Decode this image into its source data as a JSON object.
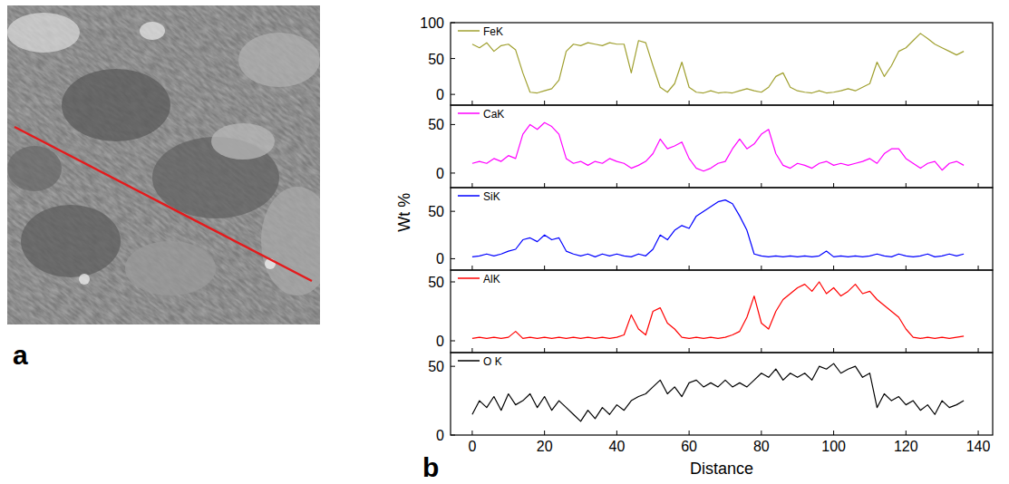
{
  "figure": {
    "panel_labels": [
      "a",
      "b"
    ],
    "x_label": "Distance",
    "y_label": "Wt %"
  },
  "chart_data": [
    {
      "type": "line",
      "legend": "top-left",
      "tick_labels": "y",
      "xlim": [
        -6,
        144
      ],
      "xticks": [
        0,
        20,
        40,
        60,
        80,
        100,
        120,
        140
      ],
      "ylim": [
        -15,
        100
      ],
      "yticks": [
        0,
        50,
        100
      ],
      "x": [
        0,
        2,
        4,
        6,
        8,
        10,
        12,
        14,
        16,
        18,
        20,
        22,
        24,
        26,
        28,
        30,
        32,
        34,
        36,
        38,
        40,
        42,
        44,
        46,
        48,
        50,
        52,
        54,
        56,
        58,
        60,
        62,
        64,
        66,
        68,
        70,
        72,
        74,
        76,
        78,
        80,
        82,
        84,
        86,
        88,
        90,
        92,
        94,
        96,
        98,
        100,
        102,
        104,
        106,
        108,
        110,
        112,
        114,
        116,
        118,
        120,
        122,
        124,
        126,
        128,
        130,
        132,
        134,
        136
      ],
      "series": [
        {
          "name": "FeK",
          "color": "#a0a030",
          "values": [
            70,
            65,
            72,
            60,
            68,
            70,
            62,
            30,
            3,
            2,
            5,
            8,
            20,
            60,
            70,
            68,
            72,
            70,
            68,
            72,
            70,
            70,
            30,
            75,
            72,
            40,
            10,
            3,
            15,
            45,
            10,
            3,
            2,
            5,
            2,
            3,
            2,
            5,
            8,
            5,
            3,
            10,
            25,
            30,
            10,
            5,
            3,
            2,
            5,
            2,
            3,
            5,
            8,
            5,
            10,
            15,
            45,
            25,
            40,
            60,
            65,
            75,
            85,
            78,
            70,
            65,
            60,
            55,
            60
          ]
        }
      ]
    },
    {
      "type": "line",
      "legend": "top-left",
      "tick_labels": "y",
      "xlim": [
        -6,
        144
      ],
      "xticks": [
        0,
        20,
        40,
        60,
        80,
        100,
        120,
        140
      ],
      "ylim": [
        -15,
        70
      ],
      "yticks": [
        0,
        50
      ],
      "x": [
        0,
        2,
        4,
        6,
        8,
        10,
        12,
        14,
        16,
        18,
        20,
        22,
        24,
        26,
        28,
        30,
        32,
        34,
        36,
        38,
        40,
        42,
        44,
        46,
        48,
        50,
        52,
        54,
        56,
        58,
        60,
        62,
        64,
        66,
        68,
        70,
        72,
        74,
        76,
        78,
        80,
        82,
        84,
        86,
        88,
        90,
        92,
        94,
        96,
        98,
        100,
        102,
        104,
        106,
        108,
        110,
        112,
        114,
        116,
        118,
        120,
        122,
        124,
        126,
        128,
        130,
        132,
        134,
        136
      ],
      "series": [
        {
          "name": "CaK",
          "color": "#ff00ff",
          "values": [
            10,
            12,
            10,
            15,
            12,
            18,
            15,
            40,
            50,
            45,
            52,
            48,
            40,
            15,
            10,
            12,
            8,
            12,
            10,
            15,
            12,
            10,
            5,
            8,
            12,
            20,
            35,
            25,
            28,
            32,
            15,
            5,
            2,
            5,
            10,
            12,
            25,
            35,
            25,
            30,
            40,
            45,
            20,
            8,
            5,
            10,
            8,
            5,
            10,
            12,
            8,
            10,
            8,
            10,
            12,
            15,
            10,
            20,
            25,
            25,
            15,
            10,
            5,
            10,
            12,
            3,
            10,
            12,
            8
          ]
        }
      ]
    },
    {
      "type": "line",
      "legend": "top-left",
      "tick_labels": "y",
      "xlim": [
        -6,
        144
      ],
      "xticks": [
        0,
        20,
        40,
        60,
        80,
        100,
        120,
        140
      ],
      "ylim": [
        -12,
        75
      ],
      "yticks": [
        0,
        50
      ],
      "x": [
        0,
        2,
        4,
        6,
        8,
        10,
        12,
        14,
        16,
        18,
        20,
        22,
        24,
        26,
        28,
        30,
        32,
        34,
        36,
        38,
        40,
        42,
        44,
        46,
        48,
        50,
        52,
        54,
        56,
        58,
        60,
        62,
        64,
        66,
        68,
        70,
        72,
        74,
        76,
        78,
        80,
        82,
        84,
        86,
        88,
        90,
        92,
        94,
        96,
        98,
        100,
        102,
        104,
        106,
        108,
        110,
        112,
        114,
        116,
        118,
        120,
        122,
        124,
        126,
        128,
        130,
        132,
        134,
        136
      ],
      "series": [
        {
          "name": "SiK",
          "color": "#0000ff",
          "values": [
            2,
            3,
            5,
            3,
            5,
            8,
            10,
            20,
            22,
            18,
            25,
            20,
            22,
            8,
            5,
            3,
            5,
            2,
            5,
            3,
            5,
            3,
            2,
            5,
            3,
            10,
            25,
            20,
            30,
            35,
            32,
            45,
            50,
            55,
            60,
            62,
            58,
            45,
            30,
            5,
            3,
            2,
            3,
            2,
            3,
            2,
            3,
            2,
            3,
            8,
            2,
            3,
            2,
            3,
            2,
            3,
            5,
            3,
            2,
            5,
            3,
            2,
            3,
            5,
            2,
            3,
            5,
            3,
            5
          ]
        }
      ]
    },
    {
      "type": "line",
      "legend": "top-left",
      "tick_labels": "y",
      "xlim": [
        -6,
        144
      ],
      "xticks": [
        0,
        20,
        40,
        60,
        80,
        100,
        120,
        140
      ],
      "ylim": [
        -10,
        60
      ],
      "yticks": [
        0,
        50
      ],
      "x": [
        0,
        2,
        4,
        6,
        8,
        10,
        12,
        14,
        16,
        18,
        20,
        22,
        24,
        26,
        28,
        30,
        32,
        34,
        36,
        38,
        40,
        42,
        44,
        46,
        48,
        50,
        52,
        54,
        56,
        58,
        60,
        62,
        64,
        66,
        68,
        70,
        72,
        74,
        76,
        78,
        80,
        82,
        84,
        86,
        88,
        90,
        92,
        94,
        96,
        98,
        100,
        102,
        104,
        106,
        108,
        110,
        112,
        114,
        116,
        118,
        120,
        122,
        124,
        126,
        128,
        130,
        132,
        134,
        136
      ],
      "series": [
        {
          "name": "AlK",
          "color": "#ff0000",
          "values": [
            2,
            3,
            2,
            3,
            2,
            3,
            8,
            2,
            3,
            2,
            3,
            2,
            3,
            2,
            3,
            2,
            3,
            2,
            3,
            2,
            3,
            5,
            22,
            10,
            5,
            25,
            28,
            15,
            10,
            3,
            2,
            3,
            2,
            3,
            2,
            3,
            5,
            8,
            20,
            38,
            15,
            10,
            25,
            35,
            40,
            45,
            48,
            42,
            50,
            40,
            45,
            38,
            42,
            48,
            40,
            42,
            35,
            30,
            25,
            20,
            10,
            3,
            2,
            3,
            2,
            3,
            2,
            3,
            4
          ]
        }
      ]
    },
    {
      "type": "line",
      "legend": "top-left",
      "xlim": [
        -6,
        144
      ],
      "xticks": [
        0,
        20,
        40,
        60,
        80,
        100,
        120,
        140
      ],
      "ylim": [
        0,
        60
      ],
      "yticks": [
        0,
        50
      ],
      "x": [
        0,
        2,
        4,
        6,
        8,
        10,
        12,
        14,
        16,
        18,
        20,
        22,
        24,
        26,
        28,
        30,
        32,
        34,
        36,
        38,
        40,
        42,
        44,
        46,
        48,
        50,
        52,
        54,
        56,
        58,
        60,
        62,
        64,
        66,
        68,
        70,
        72,
        74,
        76,
        78,
        80,
        82,
        84,
        86,
        88,
        90,
        92,
        94,
        96,
        98,
        100,
        102,
        104,
        106,
        108,
        110,
        112,
        114,
        116,
        118,
        120,
        122,
        124,
        126,
        128,
        130,
        132,
        134,
        136
      ],
      "series": [
        {
          "name": "O K",
          "color": "#000000",
          "values": [
            15,
            25,
            20,
            28,
            18,
            30,
            22,
            25,
            30,
            20,
            28,
            18,
            25,
            20,
            15,
            10,
            18,
            12,
            20,
            15,
            22,
            18,
            25,
            28,
            30,
            35,
            40,
            30,
            35,
            28,
            38,
            40,
            35,
            38,
            35,
            40,
            35,
            38,
            35,
            40,
            45,
            42,
            48,
            40,
            45,
            42,
            45,
            40,
            50,
            48,
            52,
            45,
            48,
            50,
            42,
            45,
            20,
            30,
            25,
            28,
            22,
            25,
            18,
            22,
            15,
            25,
            20,
            22,
            25
          ]
        }
      ]
    }
  ]
}
